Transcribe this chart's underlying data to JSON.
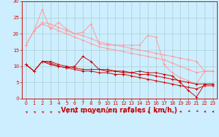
{
  "background_color": "#cceeff",
  "grid_color": "#aacccc",
  "xlabel": "Vent moyen/en rafales ( km/h )",
  "xlabel_color": "#cc0000",
  "xlabel_fontsize": 7,
  "tick_color": "#cc0000",
  "axis_color": "#cc0000",
  "xlim": [
    -0.5,
    23.5
  ],
  "ylim": [
    0,
    30
  ],
  "yticks": [
    0,
    5,
    10,
    15,
    20,
    25,
    30
  ],
  "xticks": [
    0,
    1,
    2,
    3,
    4,
    5,
    6,
    7,
    8,
    9,
    10,
    11,
    12,
    13,
    14,
    15,
    16,
    17,
    18,
    19,
    20,
    21,
    22,
    23
  ],
  "lines_dark": [
    {
      "x": [
        0,
        1,
        2,
        3,
        4,
        5,
        6,
        7,
        8,
        9,
        10,
        11,
        12,
        13,
        14,
        15,
        16,
        17,
        18,
        19,
        20,
        21,
        22,
        23
      ],
      "y": [
        10.5,
        8.5,
        11.5,
        11.0,
        10.0,
        9.5,
        10.0,
        13.0,
        11.5,
        9.0,
        9.0,
        8.5,
        8.5,
        8.0,
        8.5,
        8.0,
        8.0,
        7.5,
        7.0,
        5.0,
        2.5,
        0.5,
        4.5,
        4.5
      ]
    },
    {
      "x": [
        0,
        1,
        2,
        3,
        4,
        5,
        6,
        7,
        8,
        9,
        10,
        11,
        12,
        13,
        14,
        15,
        16,
        17,
        18,
        19,
        20,
        21,
        22,
        23
      ],
      "y": [
        10.5,
        8.5,
        11.5,
        11.5,
        10.5,
        10.0,
        9.5,
        9.0,
        9.0,
        9.0,
        8.5,
        8.5,
        8.0,
        8.0,
        7.5,
        7.5,
        7.0,
        6.5,
        6.0,
        5.5,
        5.0,
        4.5,
        4.5,
        4.5
      ]
    },
    {
      "x": [
        0,
        1,
        2,
        3,
        4,
        5,
        6,
        7,
        8,
        9,
        10,
        11,
        12,
        13,
        14,
        15,
        16,
        17,
        18,
        19,
        20,
        21,
        22,
        23
      ],
      "y": [
        10.5,
        8.5,
        11.5,
        10.5,
        10.0,
        9.5,
        9.0,
        8.5,
        8.5,
        8.0,
        8.0,
        7.5,
        7.5,
        7.0,
        6.5,
        6.0,
        5.5,
        5.0,
        4.5,
        4.0,
        3.5,
        3.0,
        4.0,
        4.0
      ]
    }
  ],
  "lines_light": [
    {
      "x": [
        0,
        1,
        2,
        3,
        4,
        5,
        6,
        7,
        8,
        9,
        10,
        11,
        12,
        13,
        14,
        15,
        16,
        17,
        18,
        19,
        20,
        21,
        22,
        23
      ],
      "y": [
        16.5,
        21.0,
        27.5,
        21.5,
        23.5,
        21.5,
        20.0,
        20.5,
        23.0,
        17.0,
        16.5,
        16.5,
        16.5,
        16.5,
        16.5,
        19.5,
        19.0,
        10.5,
        8.0,
        6.5,
        5.5,
        4.5,
        8.5,
        8.5
      ]
    },
    {
      "x": [
        0,
        1,
        2,
        3,
        4,
        5,
        6,
        7,
        8,
        9,
        10,
        11,
        12,
        13,
        14,
        15,
        16,
        17,
        18,
        19,
        20,
        21,
        22,
        23
      ],
      "y": [
        16.5,
        21.0,
        23.5,
        23.0,
        22.0,
        21.0,
        20.0,
        19.5,
        18.5,
        17.5,
        17.0,
        16.5,
        16.0,
        15.5,
        15.0,
        14.5,
        14.0,
        13.5,
        13.0,
        12.5,
        12.0,
        11.5,
        8.5,
        8.5
      ]
    },
    {
      "x": [
        0,
        1,
        2,
        3,
        4,
        5,
        6,
        7,
        8,
        9,
        10,
        11,
        12,
        13,
        14,
        15,
        16,
        17,
        18,
        19,
        20,
        21,
        22,
        23
      ],
      "y": [
        16.5,
        21.0,
        23.0,
        22.0,
        21.0,
        20.0,
        19.0,
        18.0,
        17.0,
        16.0,
        15.5,
        15.0,
        14.5,
        14.0,
        13.5,
        13.0,
        12.5,
        12.0,
        11.0,
        10.0,
        9.0,
        8.0,
        8.5,
        8.5
      ]
    }
  ],
  "dark_color": "#cc0000",
  "light_color": "#ff9999",
  "marker": "+",
  "markersize": 3,
  "linewidth": 0.7,
  "wind_angles": [
    225,
    225,
    225,
    225,
    225,
    225,
    225,
    225,
    225,
    225,
    225,
    225,
    225,
    225,
    225,
    225,
    225,
    225,
    225,
    270,
    315,
    315,
    270,
    270
  ]
}
